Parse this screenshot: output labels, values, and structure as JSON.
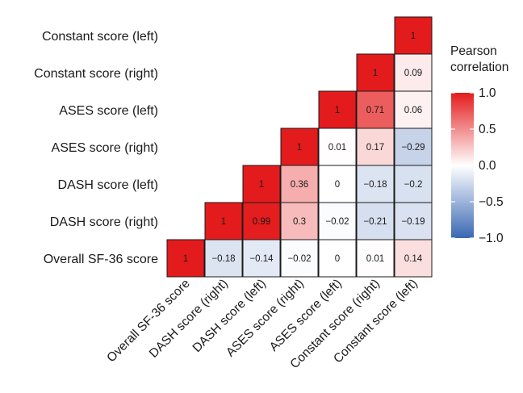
{
  "chart_data": {
    "type": "heatmap",
    "subtype": "lower-triangular correlation matrix",
    "variables": [
      "Overall SF-36 score",
      "DASH score (right)",
      "DASH score (left)",
      "ASES score (right)",
      "ASES score (left)",
      "Constant score (right)",
      "Constant score (left)"
    ],
    "row_labels_top_to_bottom": [
      "Constant score (left)",
      "Constant score (right)",
      "ASES score (left)",
      "ASES score (right)",
      "DASH score (left)",
      "DASH score (right)",
      "Overall SF-36 score"
    ],
    "column_labels_left_to_right": [
      "Overall SF-36 score",
      "DASH score (right)",
      "DASH score (left)",
      "ASES score (right)",
      "ASES score (left)",
      "Constant score (right)",
      "Constant score (left)"
    ],
    "cells": [
      {
        "row": "Constant score (left)",
        "col": "Constant score (left)",
        "value": 1,
        "label": "1"
      },
      {
        "row": "Constant score (right)",
        "col": "Constant score (right)",
        "value": 1,
        "label": "1"
      },
      {
        "row": "Constant score (right)",
        "col": "Constant score (left)",
        "value": 0.09,
        "label": "0.09"
      },
      {
        "row": "ASES score (left)",
        "col": "ASES score (left)",
        "value": 1,
        "label": "1"
      },
      {
        "row": "ASES score (left)",
        "col": "Constant score (right)",
        "value": 0.71,
        "label": "0.71"
      },
      {
        "row": "ASES score (left)",
        "col": "Constant score (left)",
        "value": 0.06,
        "label": "0.06"
      },
      {
        "row": "ASES score (right)",
        "col": "ASES score (right)",
        "value": 1,
        "label": "1"
      },
      {
        "row": "ASES score (right)",
        "col": "ASES score (left)",
        "value": 0.01,
        "label": "0.01"
      },
      {
        "row": "ASES score (right)",
        "col": "Constant score (right)",
        "value": 0.17,
        "label": "0.17"
      },
      {
        "row": "ASES score (right)",
        "col": "Constant score (left)",
        "value": -0.29,
        "label": "−0.29"
      },
      {
        "row": "DASH score (left)",
        "col": "DASH score (left)",
        "value": 1,
        "label": "1"
      },
      {
        "row": "DASH score (left)",
        "col": "ASES score (right)",
        "value": 0.36,
        "label": "0.36"
      },
      {
        "row": "DASH score (left)",
        "col": "ASES score (left)",
        "value": 0,
        "label": "0"
      },
      {
        "row": "DASH score (left)",
        "col": "Constant score (right)",
        "value": -0.18,
        "label": "−0.18"
      },
      {
        "row": "DASH score (left)",
        "col": "Constant score (left)",
        "value": -0.2,
        "label": "−0.2"
      },
      {
        "row": "DASH score (right)",
        "col": "DASH score (right)",
        "value": 1,
        "label": "1"
      },
      {
        "row": "DASH score (right)",
        "col": "DASH score (left)",
        "value": 0.99,
        "label": "0.99"
      },
      {
        "row": "DASH score (right)",
        "col": "ASES score (right)",
        "value": 0.3,
        "label": "0.3"
      },
      {
        "row": "DASH score (right)",
        "col": "ASES score (left)",
        "value": -0.02,
        "label": "−0.02"
      },
      {
        "row": "DASH score (right)",
        "col": "Constant score (right)",
        "value": -0.21,
        "label": "−0.21"
      },
      {
        "row": "DASH score (right)",
        "col": "Constant score (left)",
        "value": -0.19,
        "label": "−0.19"
      },
      {
        "row": "Overall SF-36 score",
        "col": "Overall SF-36 score",
        "value": 1,
        "label": "1"
      },
      {
        "row": "Overall SF-36 score",
        "col": "DASH score (right)",
        "value": -0.18,
        "label": "−0.18"
      },
      {
        "row": "Overall SF-36 score",
        "col": "DASH score (left)",
        "value": -0.14,
        "label": "−0.14"
      },
      {
        "row": "Overall SF-36 score",
        "col": "ASES score (right)",
        "value": -0.02,
        "label": "−0.02"
      },
      {
        "row": "Overall SF-36 score",
        "col": "ASES score (left)",
        "value": 0,
        "label": "0"
      },
      {
        "row": "Overall SF-36 score",
        "col": "Constant score (right)",
        "value": 0.01,
        "label": "0.01"
      },
      {
        "row": "Overall SF-36 score",
        "col": "Constant score (left)",
        "value": 0.14,
        "label": "0.14"
      }
    ],
    "legend": {
      "title_lines": [
        "Pearson",
        "correlation"
      ],
      "ticks": [
        {
          "value": 1.0,
          "label": "1.0"
        },
        {
          "value": 0.5,
          "label": "0.5"
        },
        {
          "value": 0.0,
          "label": "0.0"
        },
        {
          "value": -0.5,
          "label": "−0.5"
        },
        {
          "value": -1.0,
          "label": "−1.0"
        }
      ],
      "range": [
        -1.0,
        1.0
      ],
      "placement": "right"
    },
    "colors": {
      "high": "#e41b1c",
      "mid": "#ffffff",
      "low": "#3a68b4",
      "cell_border": "#1a1a1a"
    }
  }
}
